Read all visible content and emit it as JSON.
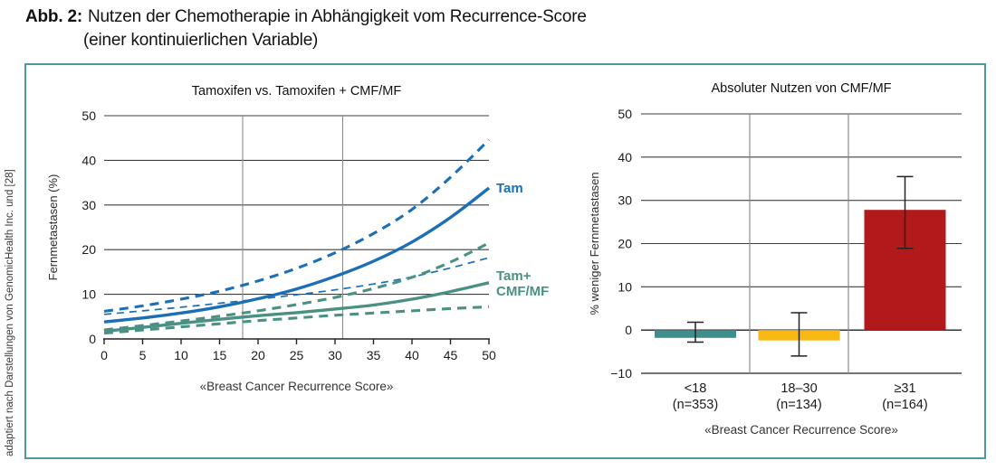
{
  "figure": {
    "label": "Abb. 2:",
    "title_line1": "Nutzen der Chemotherapie in Abhängigkeit vom Recurrence-Score",
    "title_line2": "(einer kontinuierlichen Variable)",
    "credit": "adaptiert nach Darstellungen von GenomicHealth Inc. und [28]"
  },
  "colors": {
    "tam_blue": "#1c6fb6",
    "chemo_teal": "#4a9184",
    "bar_teal": "#3d8e8c",
    "bar_yellow": "#fbb713",
    "bar_red": "#b2191a",
    "box_border": "#4f98a0",
    "grid": "#3f3f3f",
    "axis": "#222222",
    "refline": "#8c8c8c",
    "tick_text": "#1a1a1a",
    "label_text": "#333333"
  },
  "chart_data": [
    {
      "type": "line",
      "title": "Tamoxifen vs. Tamoxifen + CMF/MF",
      "xlabel": "«Breast Cancer Recurrence Score»",
      "ylabel": "Fernmetastasen (%)",
      "xlim": [
        0,
        50
      ],
      "ylim": [
        0,
        50
      ],
      "xticks": [
        0,
        5,
        10,
        15,
        20,
        25,
        30,
        35,
        40,
        45,
        50
      ],
      "yticks": [
        0,
        10,
        20,
        30,
        40,
        50
      ],
      "reference_lines_x": [
        18,
        31
      ],
      "grid": true,
      "x": [
        0,
        5,
        10,
        15,
        20,
        25,
        30,
        35,
        40,
        45,
        50
      ],
      "series": [
        {
          "name": "Tam 95% CI upper",
          "style": "dashed-thick",
          "color_key": "tam_blue",
          "values": [
            6.2,
            7.4,
            8.9,
            10.7,
            13.0,
            15.8,
            19.3,
            23.6,
            29.0,
            36.2,
            44.6
          ]
        },
        {
          "name": "Tam 95% CI lower",
          "style": "dashed-thin",
          "color_key": "tam_blue",
          "values": [
            5.5,
            6.3,
            7.1,
            8.0,
            8.9,
            9.9,
            11.0,
            12.3,
            13.9,
            15.9,
            18.2
          ]
        },
        {
          "name": "Tam+CMF/MF 95% CI upper",
          "style": "dashed-thick",
          "color_key": "chemo_teal",
          "values": [
            2.0,
            3.0,
            4.0,
            5.1,
            6.3,
            7.7,
            9.3,
            11.3,
            13.8,
            17.2,
            21.5
          ]
        },
        {
          "name": "Tam+CMF/MF 95% CI lower",
          "style": "dashed-thick",
          "color_key": "chemo_teal",
          "values": [
            1.3,
            2.0,
            2.7,
            3.4,
            4.1,
            4.7,
            5.3,
            5.8,
            6.3,
            6.8,
            7.2
          ]
        },
        {
          "name": "Tam",
          "style": "solid",
          "color_key": "tam_blue",
          "label_lines": [
            "Tam"
          ],
          "values": [
            3.8,
            4.7,
            5.8,
            7.2,
            9.0,
            11.2,
            14.0,
            17.4,
            21.7,
            27.2,
            33.8
          ]
        },
        {
          "name": "Tam+CMF/MF",
          "style": "solid",
          "color_key": "chemo_teal",
          "label_lines": [
            "Tam+",
            "CMF/MF"
          ],
          "values": [
            1.7,
            2.6,
            3.5,
            4.4,
            5.2,
            5.9,
            6.7,
            7.6,
            8.9,
            10.6,
            12.6
          ]
        }
      ]
    },
    {
      "type": "bar",
      "title": "Absoluter Nutzen von CMF/MF",
      "xlabel": "«Breast Cancer Recurrence Score»",
      "ylabel": "% weniger Fernmetastasen",
      "ylim": [
        -10,
        50
      ],
      "yticks": [
        -10,
        0,
        10,
        20,
        30,
        40,
        50
      ],
      "grid": true,
      "categories": [
        {
          "line1": "<18",
          "line2": "(n=353)"
        },
        {
          "line1": "18–30",
          "line2": "(n=134)"
        },
        {
          "line1": "≥31",
          "line2": "(n=164)"
        }
      ],
      "values": [
        -1.8,
        -2.4,
        27.8
      ],
      "ci_low": [
        -2.8,
        -6.0,
        18.9
      ],
      "ci_high": [
        1.8,
        4.0,
        35.5
      ],
      "bar_color_keys": [
        "bar_teal",
        "bar_yellow",
        "bar_red"
      ]
    }
  ]
}
